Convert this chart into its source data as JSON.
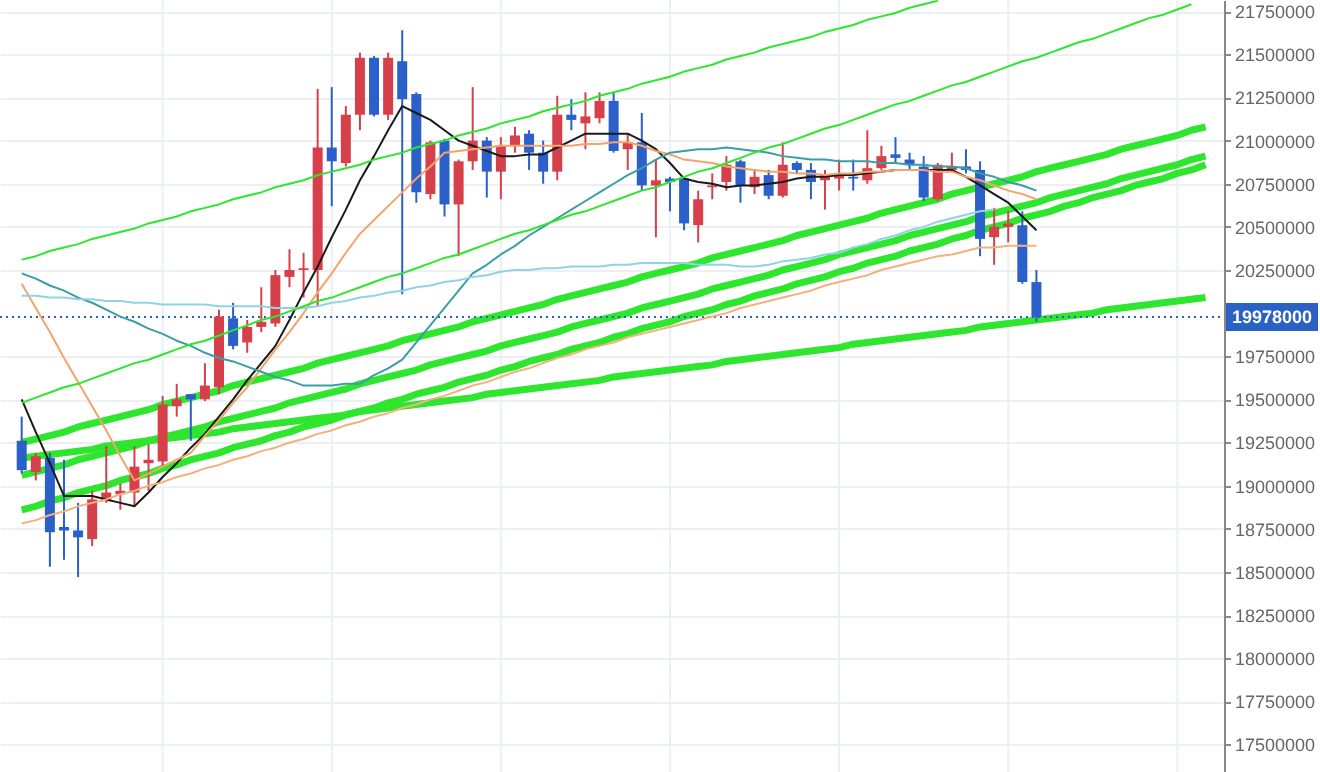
{
  "chart_data": {
    "type": "candlestick",
    "categories": [
      null,
      null,
      null,
      null,
      null,
      null,
      null,
      null,
      null,
      null,
      null,
      null,
      null,
      null,
      null,
      null,
      null,
      null,
      null,
      null,
      null,
      null,
      null,
      null,
      null,
      null,
      null,
      null,
      null,
      null,
      null,
      null,
      null,
      null,
      null,
      null,
      null,
      null,
      null,
      null,
      null,
      null,
      null,
      null,
      null,
      null,
      null,
      null,
      null,
      null,
      null,
      null,
      null,
      null,
      null,
      null,
      null,
      null,
      null,
      null,
      null,
      null,
      null,
      null,
      null,
      null,
      null,
      null,
      null,
      null,
      null,
      null,
      null,
      null,
      null,
      null,
      null,
      null,
      null,
      null,
      null,
      null,
      null,
      null,
      null
    ],
    "ohlc": [
      [
        19260000,
        19400000,
        19070000,
        19090000
      ],
      [
        19080000,
        19190000,
        19030000,
        19170000
      ],
      [
        19160000,
        19190000,
        18530000,
        18730000
      ],
      [
        18760000,
        19150000,
        18570000,
        18740000
      ],
      [
        18740000,
        18900000,
        18470000,
        18700000
      ],
      [
        18690000,
        18970000,
        18650000,
        18920000
      ],
      [
        18910000,
        19230000,
        18900000,
        18960000
      ],
      [
        18950000,
        19010000,
        18860000,
        18970000
      ],
      [
        18960000,
        19230000,
        18880000,
        19110000
      ],
      [
        19130000,
        19240000,
        18970000,
        19150000
      ],
      [
        19140000,
        19520000,
        19110000,
        19470000
      ],
      [
        19460000,
        19590000,
        19400000,
        19500000
      ],
      [
        19530000,
        19530000,
        19260000,
        19500000
      ],
      [
        19500000,
        19710000,
        19490000,
        19580000
      ],
      [
        19570000,
        20020000,
        19530000,
        19980000
      ],
      [
        19970000,
        20060000,
        19790000,
        19810000
      ],
      [
        19830000,
        19960000,
        19770000,
        19920000
      ],
      [
        19920000,
        20150000,
        19890000,
        19950000
      ],
      [
        19940000,
        20250000,
        19920000,
        20220000
      ],
      [
        20210000,
        20370000,
        20150000,
        20250000
      ],
      [
        20250000,
        20350000,
        20090000,
        20260000
      ],
      [
        20250000,
        21300000,
        20040000,
        20960000
      ],
      [
        20960000,
        21310000,
        20620000,
        20880000
      ],
      [
        20870000,
        21200000,
        20850000,
        21150000
      ],
      [
        21150000,
        21510000,
        21060000,
        21480000
      ],
      [
        21480000,
        21490000,
        21140000,
        21150000
      ],
      [
        21150000,
        21510000,
        21120000,
        21480000
      ],
      [
        21460000,
        21640000,
        20110000,
        21240000
      ],
      [
        21270000,
        21280000,
        20640000,
        20700000
      ],
      [
        20690000,
        21000000,
        20660000,
        20990000
      ],
      [
        21000000,
        21010000,
        20560000,
        20630000
      ],
      [
        20630000,
        20890000,
        20330000,
        20880000
      ],
      [
        20880000,
        21310000,
        20830000,
        21000000
      ],
      [
        21000000,
        21020000,
        20670000,
        20820000
      ],
      [
        20820000,
        21020000,
        20660000,
        20970000
      ],
      [
        20970000,
        21080000,
        20930000,
        21030000
      ],
      [
        21040000,
        21060000,
        20830000,
        20930000
      ],
      [
        20930000,
        21000000,
        20750000,
        20820000
      ],
      [
        20820000,
        21260000,
        20770000,
        21150000
      ],
      [
        21150000,
        21240000,
        21060000,
        21120000
      ],
      [
        21100000,
        21280000,
        20950000,
        21140000
      ],
      [
        21130000,
        21280000,
        21100000,
        21230000
      ],
      [
        21230000,
        21280000,
        20930000,
        20940000
      ],
      [
        20950000,
        21040000,
        20830000,
        20990000
      ],
      [
        20990000,
        21160000,
        20710000,
        20740000
      ],
      [
        20740000,
        20890000,
        20440000,
        20770000
      ],
      [
        20780000,
        20790000,
        20590000,
        20760000
      ],
      [
        20780000,
        20790000,
        20480000,
        20520000
      ],
      [
        20510000,
        20710000,
        20410000,
        20660000
      ],
      [
        20730000,
        20810000,
        20660000,
        20740000
      ],
      [
        20760000,
        20910000,
        20710000,
        20860000
      ],
      [
        20880000,
        20890000,
        20640000,
        20740000
      ],
      [
        20730000,
        20830000,
        20690000,
        20790000
      ],
      [
        20800000,
        20830000,
        20660000,
        20680000
      ],
      [
        20680000,
        20990000,
        20670000,
        20860000
      ],
      [
        20870000,
        20880000,
        20810000,
        20830000
      ],
      [
        20830000,
        20870000,
        20660000,
        20760000
      ],
      [
        20770000,
        20830000,
        20600000,
        20800000
      ],
      [
        20780000,
        20890000,
        20710000,
        20800000
      ],
      [
        20790000,
        20890000,
        20710000,
        20780000
      ],
      [
        20770000,
        21060000,
        20750000,
        20840000
      ],
      [
        20840000,
        20970000,
        20830000,
        20910000
      ],
      [
        20920000,
        21020000,
        20870000,
        20900000
      ],
      [
        20890000,
        20930000,
        20830000,
        20860000
      ],
      [
        20850000,
        20910000,
        20650000,
        20670000
      ],
      [
        20660000,
        20870000,
        20650000,
        20860000
      ],
      [
        20830000,
        20930000,
        20820000,
        20850000
      ],
      [
        20850000,
        20950000,
        20810000,
        20830000
      ],
      [
        20830000,
        20880000,
        20330000,
        20430000
      ],
      [
        20440000,
        20610000,
        20280000,
        20500000
      ],
      [
        20500000,
        20590000,
        20410000,
        20520000
      ],
      [
        20510000,
        20590000,
        20170000,
        20180000
      ],
      [
        20180000,
        20250000,
        19950000,
        19978000
      ],
      null,
      null,
      null,
      null,
      null,
      null,
      null,
      null,
      null,
      null,
      null,
      null
    ],
    "colors": [
      "#2b5fc9",
      "#d6404a",
      "#2b5fc9",
      "#2b5fc9",
      "#2b5fc9",
      "#d6404a",
      "#d6404a",
      "#d6404a",
      "#d6404a",
      "#d6404a",
      "#d6404a",
      "#d6404a",
      "#2b5fc9",
      "#d6404a",
      "#d6404a",
      "#2b5fc9",
      "#d6404a",
      "#d6404a",
      "#d6404a",
      "#d6404a",
      "#d6404a",
      "#d6404a",
      "#2b5fc9",
      "#d6404a",
      "#d6404a",
      "#2b5fc9",
      "#d6404a",
      "#2b5fc9",
      "#2b5fc9",
      "#d6404a",
      "#2b5fc9",
      "#d6404a",
      "#d6404a",
      "#2b5fc9",
      "#d6404a",
      "#d6404a",
      "#2b5fc9",
      "#2b5fc9",
      "#d6404a",
      "#2b5fc9",
      "#d6404a",
      "#d6404a",
      "#2b5fc9",
      "#d6404a",
      "#2b5fc9",
      "#d6404a",
      "#2b5fc9",
      "#2b5fc9",
      "#d6404a",
      "#d6404a",
      "#d6404a",
      "#2b5fc9",
      "#d6404a",
      "#2b5fc9",
      "#d6404a",
      "#2b5fc9",
      "#2b5fc9",
      "#d6404a",
      "#d6404a",
      "#2b5fc9",
      "#d6404a",
      "#d6404a",
      "#2b5fc9",
      "#2b5fc9",
      "#2b5fc9",
      "#d6404a",
      "#d6404a",
      "#2b5fc9",
      "#2b5fc9",
      "#d6404a",
      "#d6404a",
      "#2b5fc9",
      "#2b5fc9",
      null,
      null,
      null,
      null,
      null,
      null,
      null,
      null,
      null,
      null,
      null,
      null
    ],
    "series": [
      {
        "type": "line",
        "color": "#1a1a1a",
        "values": [
          19500000,
          19310000,
          19130000,
          18940000,
          18940000,
          18940000,
          18920000,
          18900000,
          18880000,
          18960000,
          19050000,
          19130000,
          19220000,
          19300000,
          19400000,
          19500000,
          19610000,
          19710000,
          19810000,
          19960000,
          20120000,
          20270000,
          20440000,
          20600000,
          20770000,
          20910000,
          21060000,
          21200000,
          21160000,
          21120000,
          21060000,
          21000000,
          20970000,
          20940000,
          20910000,
          20910000,
          20920000,
          20920000,
          20960000,
          21000000,
          21040000,
          21040000,
          21040000,
          21040000,
          21000000,
          20950000,
          20870000,
          20780000,
          20760000,
          20750000,
          20730000,
          20740000,
          20740000,
          20750000,
          20760000,
          20780000,
          20790000,
          20790000,
          20800000,
          20800000,
          20810000,
          20820000,
          20830000,
          20830000,
          20830000,
          20830000,
          20830000,
          20790000,
          20740000,
          20690000,
          20640000,
          20560000,
          20480000,
          null,
          null,
          null,
          null,
          null,
          null,
          null,
          null,
          null,
          null,
          null,
          null
        ]
      },
      {
        "type": "line",
        "color": "#f4a36c",
        "values": [
          20170000,
          20030000,
          19890000,
          19740000,
          19600000,
          19460000,
          19320000,
          19170000,
          19030000,
          19070000,
          19110000,
          19150000,
          19190000,
          19290000,
          19380000,
          19480000,
          19570000,
          19680000,
          19790000,
          19890000,
          20000000,
          20120000,
          20230000,
          20350000,
          20460000,
          20540000,
          20620000,
          20700000,
          20780000,
          20850000,
          20930000,
          20940000,
          20950000,
          20960000,
          20970000,
          20970000,
          20970000,
          20970000,
          20970000,
          20970000,
          20980000,
          20980000,
          20990000,
          20990000,
          20970000,
          20940000,
          20920000,
          20890000,
          20880000,
          20870000,
          20850000,
          20840000,
          20830000,
          20820000,
          20820000,
          20810000,
          20810000,
          20800000,
          20810000,
          20810000,
          20820000,
          20820000,
          20830000,
          20830000,
          20830000,
          20820000,
          20820000,
          20790000,
          20770000,
          20740000,
          20710000,
          20690000,
          20660000,
          null,
          null,
          null,
          null,
          null,
          null,
          null,
          null,
          null,
          null,
          null,
          null
        ]
      },
      {
        "type": "line",
        "color": "#3a9ea5",
        "values": [
          20230000,
          20200000,
          20160000,
          20130000,
          20090000,
          20060000,
          20020000,
          19980000,
          19950000,
          19910000,
          19880000,
          19840000,
          19810000,
          19770000,
          19740000,
          19720000,
          19690000,
          19660000,
          19630000,
          19610000,
          19580000,
          19580000,
          19580000,
          19590000,
          19590000,
          19640000,
          19680000,
          19730000,
          19830000,
          19930000,
          20030000,
          20130000,
          20230000,
          20280000,
          20340000,
          20390000,
          20450000,
          20500000,
          20550000,
          20600000,
          20650000,
          20700000,
          20750000,
          20800000,
          20840000,
          20890000,
          20930000,
          20940000,
          20950000,
          20950000,
          20960000,
          20950000,
          20940000,
          20930000,
          20910000,
          20900000,
          20890000,
          20890000,
          20880000,
          20880000,
          20880000,
          20870000,
          20870000,
          20860000,
          20860000,
          20850000,
          20850000,
          20840000,
          20810000,
          20790000,
          20760000,
          20740000,
          20710000,
          null,
          null,
          null,
          null,
          null,
          null,
          null,
          null,
          null,
          null,
          null,
          null
        ]
      },
      {
        "type": "line",
        "color": "#8fd3e6",
        "values": [
          20100000,
          20100000,
          20090000,
          20090000,
          20080000,
          20080000,
          20070000,
          20070000,
          20060000,
          20060000,
          20050000,
          20050000,
          20050000,
          20050000,
          20040000,
          20040000,
          20040000,
          20040000,
          20030000,
          20030000,
          20030000,
          20040000,
          20060000,
          20070000,
          20090000,
          20100000,
          20120000,
          20130000,
          20150000,
          20160000,
          20180000,
          20190000,
          20210000,
          20220000,
          20240000,
          20250000,
          20250000,
          20260000,
          20260000,
          20270000,
          20270000,
          20270000,
          20280000,
          20280000,
          20290000,
          20290000,
          20290000,
          20290000,
          20280000,
          20280000,
          20280000,
          20270000,
          20270000,
          20280000,
          20300000,
          20310000,
          20320000,
          20340000,
          20350000,
          20380000,
          20400000,
          20430000,
          20450000,
          20480000,
          20500000,
          20530000,
          20550000,
          20570000,
          20590000,
          20600000,
          null,
          null,
          null,
          null,
          null,
          null,
          null,
          null,
          null,
          null,
          null,
          null,
          null,
          null,
          null
        ]
      },
      {
        "type": "line",
        "color": "#f2b27e",
        "values": [
          18780000,
          18800000,
          18830000,
          18850000,
          18880000,
          18900000,
          18920000,
          18950000,
          18970000,
          19000000,
          19020000,
          19050000,
          19070000,
          19100000,
          19120000,
          19150000,
          19170000,
          19200000,
          19220000,
          19250000,
          19270000,
          19300000,
          19320000,
          19350000,
          19370000,
          19400000,
          19420000,
          19450000,
          19470000,
          19500000,
          19520000,
          19550000,
          19580000,
          19600000,
          19630000,
          19660000,
          19680000,
          19710000,
          19740000,
          19760000,
          19790000,
          19810000,
          19830000,
          19860000,
          19880000,
          19900000,
          19920000,
          19940000,
          19960000,
          19980000,
          20000000,
          20030000,
          20050000,
          20070000,
          20090000,
          20110000,
          20130000,
          20160000,
          20180000,
          20200000,
          20220000,
          20250000,
          20270000,
          20290000,
          20310000,
          20330000,
          20340000,
          20360000,
          20380000,
          20380000,
          20390000,
          20390000,
          20390000,
          null,
          null,
          null,
          null,
          null,
          null,
          null,
          null,
          null,
          null,
          null,
          null
        ]
      },
      {
        "type": "line",
        "color": "#2ee62e",
        "values": [
          20310000,
          20330000,
          20360000,
          20380000,
          20400000,
          20430000,
          20450000,
          20470000,
          20490000,
          20520000,
          20540000,
          20560000,
          20590000,
          20610000,
          20630000,
          20660000,
          20680000,
          20700000,
          20730000,
          20750000,
          20770000,
          20800000,
          20820000,
          20840000,
          20860000,
          20890000,
          20910000,
          20930000,
          20960000,
          20980000,
          21000000,
          21030000,
          21050000,
          21070000,
          21100000,
          21120000,
          21140000,
          21170000,
          21190000,
          21210000,
          21230000,
          21260000,
          21280000,
          21300000,
          21330000,
          21350000,
          21370000,
          21400000,
          21420000,
          21440000,
          21470000,
          21490000,
          21510000,
          21540000,
          21560000,
          21580000,
          21600000,
          21630000,
          21650000,
          21670000,
          21700000,
          21720000,
          21740000,
          21770000,
          21790000,
          21810000,
          null,
          null,
          null,
          null,
          null,
          null,
          null,
          null,
          null,
          null,
          null,
          null,
          null,
          null,
          null,
          null,
          null,
          null,
          null
        ]
      },
      {
        "type": "line",
        "color": "#2ee62e",
        "values": [
          19480000,
          19510000,
          19540000,
          19570000,
          19590000,
          19620000,
          19650000,
          19680000,
          19710000,
          19730000,
          19760000,
          19790000,
          19820000,
          19840000,
          19870000,
          19900000,
          19930000,
          19960000,
          19980000,
          20010000,
          20040000,
          20070000,
          20090000,
          20120000,
          20150000,
          20180000,
          20210000,
          20230000,
          20260000,
          20290000,
          20320000,
          20340000,
          20370000,
          20400000,
          20430000,
          20460000,
          20480000,
          20510000,
          20540000,
          20570000,
          20590000,
          20620000,
          20650000,
          20680000,
          20710000,
          20730000,
          20760000,
          20790000,
          20820000,
          20840000,
          20870000,
          20900000,
          20930000,
          20960000,
          20980000,
          21010000,
          21040000,
          21070000,
          21090000,
          21120000,
          21150000,
          21180000,
          21210000,
          21230000,
          21260000,
          21290000,
          21320000,
          21340000,
          21370000,
          21400000,
          21430000,
          21460000,
          21480000,
          21510000,
          21540000,
          21570000,
          21590000,
          21620000,
          21650000,
          21680000,
          21710000,
          21730000,
          21760000,
          21790000,
          null
        ]
      },
      {
        "type": "line",
        "color": "#2ee62e",
        "values": [
          19250000,
          19270000,
          19290000,
          19310000,
          19340000,
          19360000,
          19380000,
          19400000,
          19420000,
          19440000,
          19470000,
          19490000,
          19510000,
          19530000,
          19550000,
          19580000,
          19600000,
          19620000,
          19640000,
          19660000,
          19680000,
          19710000,
          19730000,
          19750000,
          19770000,
          19790000,
          19810000,
          19840000,
          19860000,
          19880000,
          19900000,
          19920000,
          19950000,
          19970000,
          19990000,
          20010000,
          20030000,
          20050000,
          20080000,
          20100000,
          20120000,
          20140000,
          20160000,
          20180000,
          20210000,
          20230000,
          20250000,
          20270000,
          20290000,
          20320000,
          20340000,
          20360000,
          20380000,
          20400000,
          20420000,
          20450000,
          20470000,
          20490000,
          20510000,
          20530000,
          20550000,
          20580000,
          20600000,
          20620000,
          20640000,
          20660000,
          20690000,
          20710000,
          20730000,
          20750000,
          20770000,
          20790000,
          20820000,
          20840000,
          20860000,
          20880000,
          20900000,
          20920000,
          20950000,
          20970000,
          20990000,
          21010000,
          21030000,
          21060000,
          21080000
        ]
      },
      {
        "type": "line",
        "color": "#2ee62e",
        "values": [
          19060000,
          19080000,
          19100000,
          19120000,
          19150000,
          19170000,
          19190000,
          19210000,
          19230000,
          19260000,
          19280000,
          19300000,
          19320000,
          19340000,
          19370000,
          19390000,
          19410000,
          19430000,
          19450000,
          19480000,
          19500000,
          19520000,
          19540000,
          19560000,
          19590000,
          19610000,
          19630000,
          19650000,
          19670000,
          19700000,
          19720000,
          19740000,
          19760000,
          19780000,
          19810000,
          19830000,
          19850000,
          19870000,
          19890000,
          19920000,
          19940000,
          19960000,
          19980000,
          20000000,
          20030000,
          20050000,
          20070000,
          20090000,
          20110000,
          20140000,
          20160000,
          20180000,
          20200000,
          20220000,
          20250000,
          20270000,
          20290000,
          20310000,
          20340000,
          20360000,
          20380000,
          20400000,
          20420000,
          20450000,
          20470000,
          20490000,
          20510000,
          20530000,
          20560000,
          20580000,
          20600000,
          20620000,
          20640000,
          20670000,
          20690000,
          20710000,
          20730000,
          20750000,
          20780000,
          20800000,
          20820000,
          20840000,
          20860000,
          20890000,
          20910000
        ]
      },
      {
        "type": "line",
        "color": "#2ee62e",
        "values": [
          18860000,
          18880000,
          18910000,
          18930000,
          18960000,
          18980000,
          19000000,
          19030000,
          19050000,
          19070000,
          19100000,
          19120000,
          19150000,
          19170000,
          19190000,
          19220000,
          19240000,
          19260000,
          19290000,
          19310000,
          19340000,
          19360000,
          19380000,
          19410000,
          19430000,
          19450000,
          19480000,
          19500000,
          19530000,
          19550000,
          19570000,
          19600000,
          19620000,
          19640000,
          19670000,
          19690000,
          19720000,
          19740000,
          19760000,
          19790000,
          19810000,
          19830000,
          19860000,
          19880000,
          19910000,
          19930000,
          19950000,
          19980000,
          20000000,
          20020000,
          20050000,
          20070000,
          20100000,
          20120000,
          20140000,
          20170000,
          20190000,
          20210000,
          20240000,
          20260000,
          20290000,
          20310000,
          20330000,
          20360000,
          20380000,
          20400000,
          20430000,
          20450000,
          20480000,
          20500000,
          20520000,
          20550000,
          20570000,
          20590000,
          20620000,
          20640000,
          20670000,
          20690000,
          20710000,
          20740000,
          20760000,
          20780000,
          20810000,
          20830000,
          20860000
        ]
      },
      {
        "type": "line",
        "color": "#2ee62e",
        "values": [
          19160000,
          19170000,
          19180000,
          19190000,
          19200000,
          19210000,
          19230000,
          19240000,
          19250000,
          19260000,
          19270000,
          19280000,
          19290000,
          19300000,
          19310000,
          19330000,
          19340000,
          19350000,
          19360000,
          19370000,
          19380000,
          19390000,
          19400000,
          19410000,
          19430000,
          19440000,
          19450000,
          19460000,
          19470000,
          19480000,
          19490000,
          19500000,
          19510000,
          19530000,
          19540000,
          19550000,
          19560000,
          19570000,
          19580000,
          19590000,
          19600000,
          19610000,
          19630000,
          19640000,
          19650000,
          19660000,
          19670000,
          19680000,
          19690000,
          19700000,
          19720000,
          19730000,
          19740000,
          19750000,
          19760000,
          19770000,
          19780000,
          19790000,
          19800000,
          19820000,
          19830000,
          19840000,
          19850000,
          19860000,
          19870000,
          19880000,
          19890000,
          19900000,
          19920000,
          19930000,
          19940000,
          19950000,
          19960000,
          19970000,
          19980000,
          19990000,
          20000000,
          20020000,
          20030000,
          20040000,
          20050000,
          20060000,
          20070000,
          20080000,
          20090000
        ]
      }
    ],
    "ylim": [
      17340000,
      21815000
    ],
    "yticks": [
      17500000,
      17750000,
      18000000,
      18250000,
      18500000,
      18750000,
      19000000,
      19250000,
      19500000,
      19750000,
      20250000,
      20500000,
      20750000,
      21000000,
      21250000,
      21500000,
      21750000
    ],
    "grid": true,
    "ref_lines": [
      {
        "axis": "y",
        "value": 19978000,
        "label": "19978000",
        "color": "#2962c4",
        "line_style": "dotted"
      }
    ]
  }
}
